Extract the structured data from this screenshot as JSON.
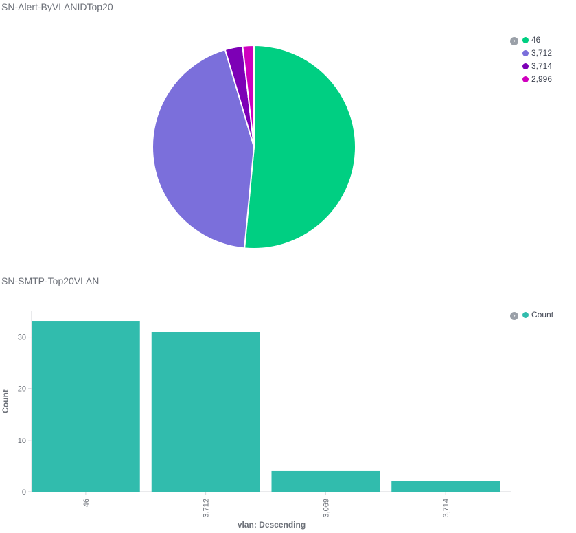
{
  "chart_data": [
    {
      "type": "pie",
      "title": "SN-Alert-ByVLANIDTop20",
      "slices": [
        {
          "label": "46",
          "value": 51.5,
          "color": "#00cf82"
        },
        {
          "label": "3,712",
          "value": 43.9,
          "color": "#7b6fdb"
        },
        {
          "label": "3,714",
          "value": 2.8,
          "color": "#7d00b6"
        },
        {
          "label": "2,996",
          "value": 1.8,
          "color": "#d000be"
        }
      ],
      "legend": {
        "position": "top-right"
      }
    },
    {
      "type": "bar",
      "title": "SN-SMTP-Top20VLAN",
      "categories": [
        "46",
        "3,712",
        "3,069",
        "3,714"
      ],
      "series": [
        {
          "name": "Count",
          "values": [
            33,
            31,
            4,
            2
          ],
          "color": "#31bcad"
        }
      ],
      "xlabel": "vlan: Descending",
      "ylabel": "Count",
      "yticks": [
        0,
        10,
        20,
        30
      ],
      "ylim": [
        0,
        35
      ],
      "legend": {
        "position": "top-right"
      }
    }
  ]
}
